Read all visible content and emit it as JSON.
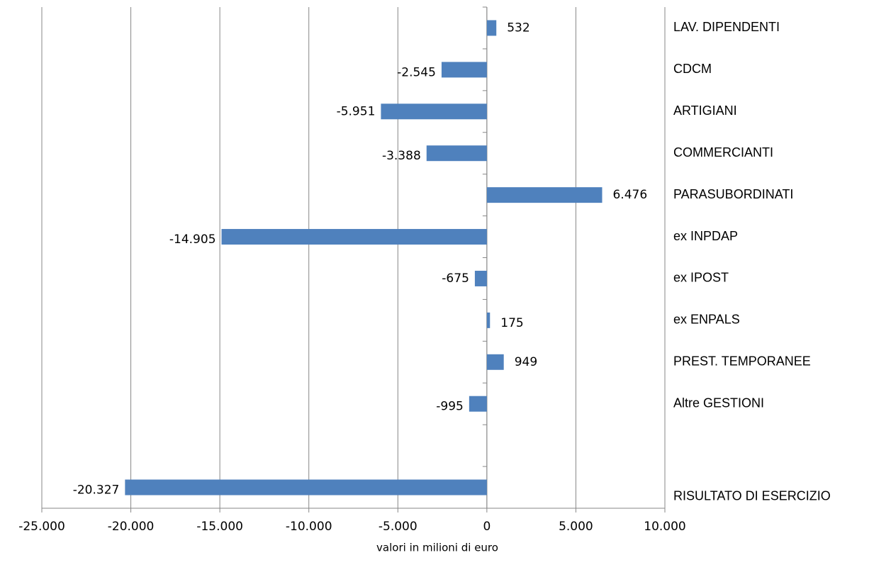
{
  "chart_data": {
    "type": "hbar",
    "x_label": "valori in milioni di euro",
    "categories": [
      "LAV. DIPENDENTI",
      "CDCM",
      "ARTIGIANI",
      "COMMERCIANTI",
      "PARASUBORDINATI",
      "ex INPDAP",
      "ex IPOST",
      "ex ENPALS",
      "PREST. TEMPORANEE",
      "Altre GESTIONI",
      null,
      "RISULTATO DI ESERCIZIO"
    ],
    "values": [
      532,
      -2545,
      -5951,
      -3388,
      6476,
      -14905,
      -675,
      175,
      949,
      -995,
      null,
      -20327
    ],
    "value_labels": [
      "532",
      "-2.545",
      "-5.951",
      "-3.388",
      "6.476",
      "-14.905",
      "-675",
      "175",
      "949",
      "-995",
      null,
      "-20.327"
    ],
    "color": "#4f81bd",
    "xlim": [
      -25000,
      10000
    ],
    "xticks": [
      {
        "value": -25000,
        "label": "-25.000"
      },
      {
        "value": -20000,
        "label": "-20.000"
      },
      {
        "value": -15000,
        "label": "-15.000"
      },
      {
        "value": -10000,
        "label": "-10.000"
      },
      {
        "value": -5000,
        "label": "-5.000"
      },
      0,
      {
        "value": 5000,
        "label": "5.000"
      },
      {
        "value": 10000,
        "label": "10.000"
      }
    ],
    "grid": true
  }
}
